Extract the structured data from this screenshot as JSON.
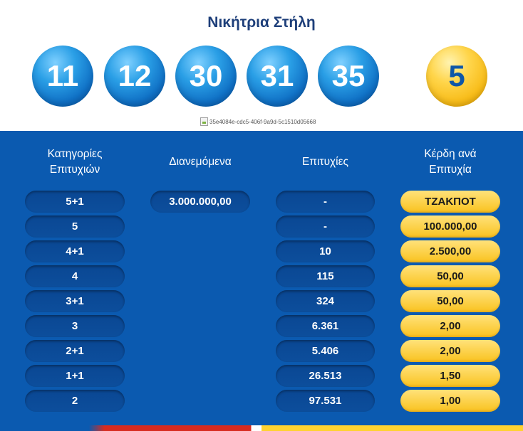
{
  "title": "Νικήτρια Στήλη",
  "balls": [
    "11",
    "12",
    "30",
    "31",
    "35"
  ],
  "joker": "5",
  "broken_image_alt": "35e4084e-cdc5-406f-9a9d-5c1510d05668",
  "table": {
    "headers": {
      "categories_line1": "Κατηγορίες",
      "categories_line2": "Επιτυχιών",
      "distributed": "Διανεμόμενα",
      "winners": "Επιτυχίες",
      "prize_line1": "Κέρδη ανά",
      "prize_line2": "Επιτυχία"
    },
    "distributed_value": "3.000.000,00",
    "rows": [
      {
        "category": "5+1",
        "winners": "-",
        "prize": "ΤΖΑΚΠΟΤ"
      },
      {
        "category": "5",
        "winners": "-",
        "prize": "100.000,00"
      },
      {
        "category": "4+1",
        "winners": "10",
        "prize": "2.500,00"
      },
      {
        "category": "4",
        "winners": "115",
        "prize": "50,00"
      },
      {
        "category": "3+1",
        "winners": "324",
        "prize": "50,00"
      },
      {
        "category": "3",
        "winners": "6.361",
        "prize": "2,00"
      },
      {
        "category": "2+1",
        "winners": "5.406",
        "prize": "2,00"
      },
      {
        "category": "1+1",
        "winners": "26.513",
        "prize": "1,50"
      },
      {
        "category": "2",
        "winners": "97.531",
        "prize": "1,00"
      }
    ]
  },
  "colors": {
    "panel": "#0b5ab0",
    "ball_blue": "#1a86d6",
    "ball_gold": "#f9c21f",
    "title": "#1e3f7a"
  }
}
